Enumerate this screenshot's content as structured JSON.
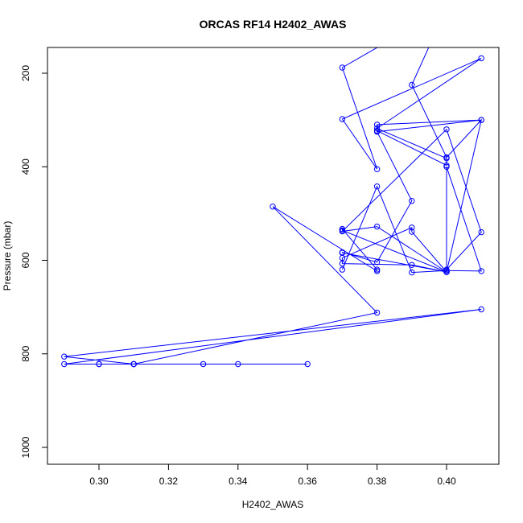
{
  "chart_data": {
    "type": "line",
    "title": "ORCAS RF14 H2402_AWAS",
    "xlabel": "H2402_AWAS",
    "ylabel": "Pressure (mbar)",
    "xlim": [
      0.29,
      0.41
    ],
    "ylim": [
      1030,
      150
    ],
    "y_reversed": true,
    "grid": false,
    "marker": "open-circle",
    "xticks": [
      0.3,
      0.32,
      0.34,
      0.36,
      0.38,
      0.4
    ],
    "xtick_labels": [
      "0.30",
      "0.32",
      "0.34",
      "0.36",
      "0.38",
      "0.40"
    ],
    "yticks": [
      200,
      400,
      600,
      800,
      1000
    ],
    "ytick_labels": [
      "200",
      "400",
      "600",
      "800",
      "1000"
    ],
    "series": [
      {
        "color": "#0000ff",
        "x": [
          0.36,
          0.34,
          0.33,
          0.31,
          0.31,
          0.3,
          0.3,
          0.29,
          0.41,
          0.29,
          0.31,
          0.38,
          0.35,
          0.38,
          0.38,
          0.37,
          0.37,
          0.4,
          0.4,
          0.37,
          0.37,
          0.38,
          0.39,
          0.38,
          0.41,
          0.38,
          0.38,
          0.4,
          0.4,
          0.38,
          0.41,
          0.37,
          0.38,
          0.37,
          0.4,
          0.39,
          0.4,
          0.41,
          0.4,
          0.39,
          0.39,
          0.37,
          0.37,
          0.39,
          0.4,
          0.4,
          0.38,
          0.37,
          0.4,
          0.41,
          0.4,
          0.4,
          0.41,
          0.4,
          0.39,
          0.38,
          0.37
        ],
        "y": [
          822,
          822,
          822,
          822,
          822,
          822,
          822,
          822,
          705,
          806,
          822,
          712,
          485,
          623,
          620,
          533,
          536,
          625,
          625,
          584,
          583,
          604,
          473,
          325,
          300,
          310,
          323,
          397,
          382,
          318,
          168,
          298,
          405,
          188,
          60,
          225,
          380,
          300,
          625,
          539,
          530,
          595,
          607,
          610,
          625,
          625,
          528,
          538,
          320,
          540,
          620,
          400,
          623,
          622,
          626,
          442,
          620
        ]
      }
    ]
  }
}
